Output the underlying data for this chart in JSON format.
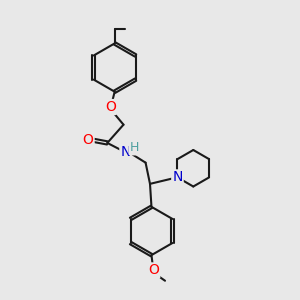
{
  "background_color": "#e8e8e8",
  "bond_color": "#1a1a1a",
  "atom_colors": {
    "O": "#ff0000",
    "N": "#0000cc",
    "H": "#4fa0a0",
    "C": "#1a1a1a"
  },
  "bond_width": 1.5,
  "figsize": [
    3.0,
    3.0
  ],
  "dpi": 100
}
